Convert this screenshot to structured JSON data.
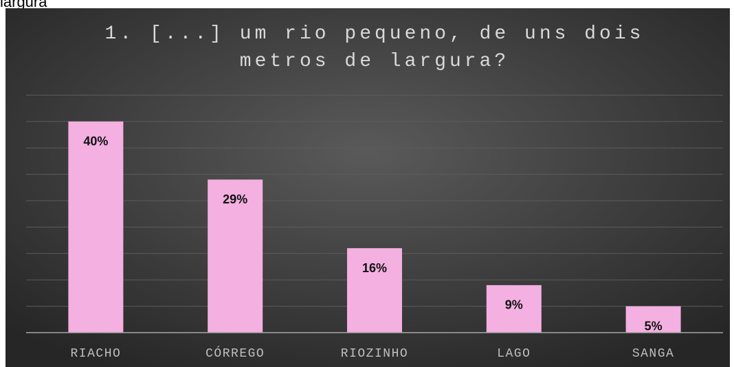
{
  "caption": "largura",
  "chart_data": {
    "type": "bar",
    "title": "1. [...] um rio pequeno, de uns dois metros de largura?",
    "categories": [
      "RIACHO",
      "CÓRREGO",
      "RIOZINHO",
      "LAGO",
      "SANGA"
    ],
    "values": [
      40,
      29,
      16,
      9,
      5
    ],
    "value_labels": [
      "40%",
      "29%",
      "16%",
      "9%",
      "5%"
    ],
    "color": "#f3b0e1",
    "ylim": [
      0,
      45
    ],
    "yticks": [
      0,
      5,
      10,
      15,
      20,
      25,
      30,
      35,
      40,
      45
    ],
    "grid": true
  }
}
